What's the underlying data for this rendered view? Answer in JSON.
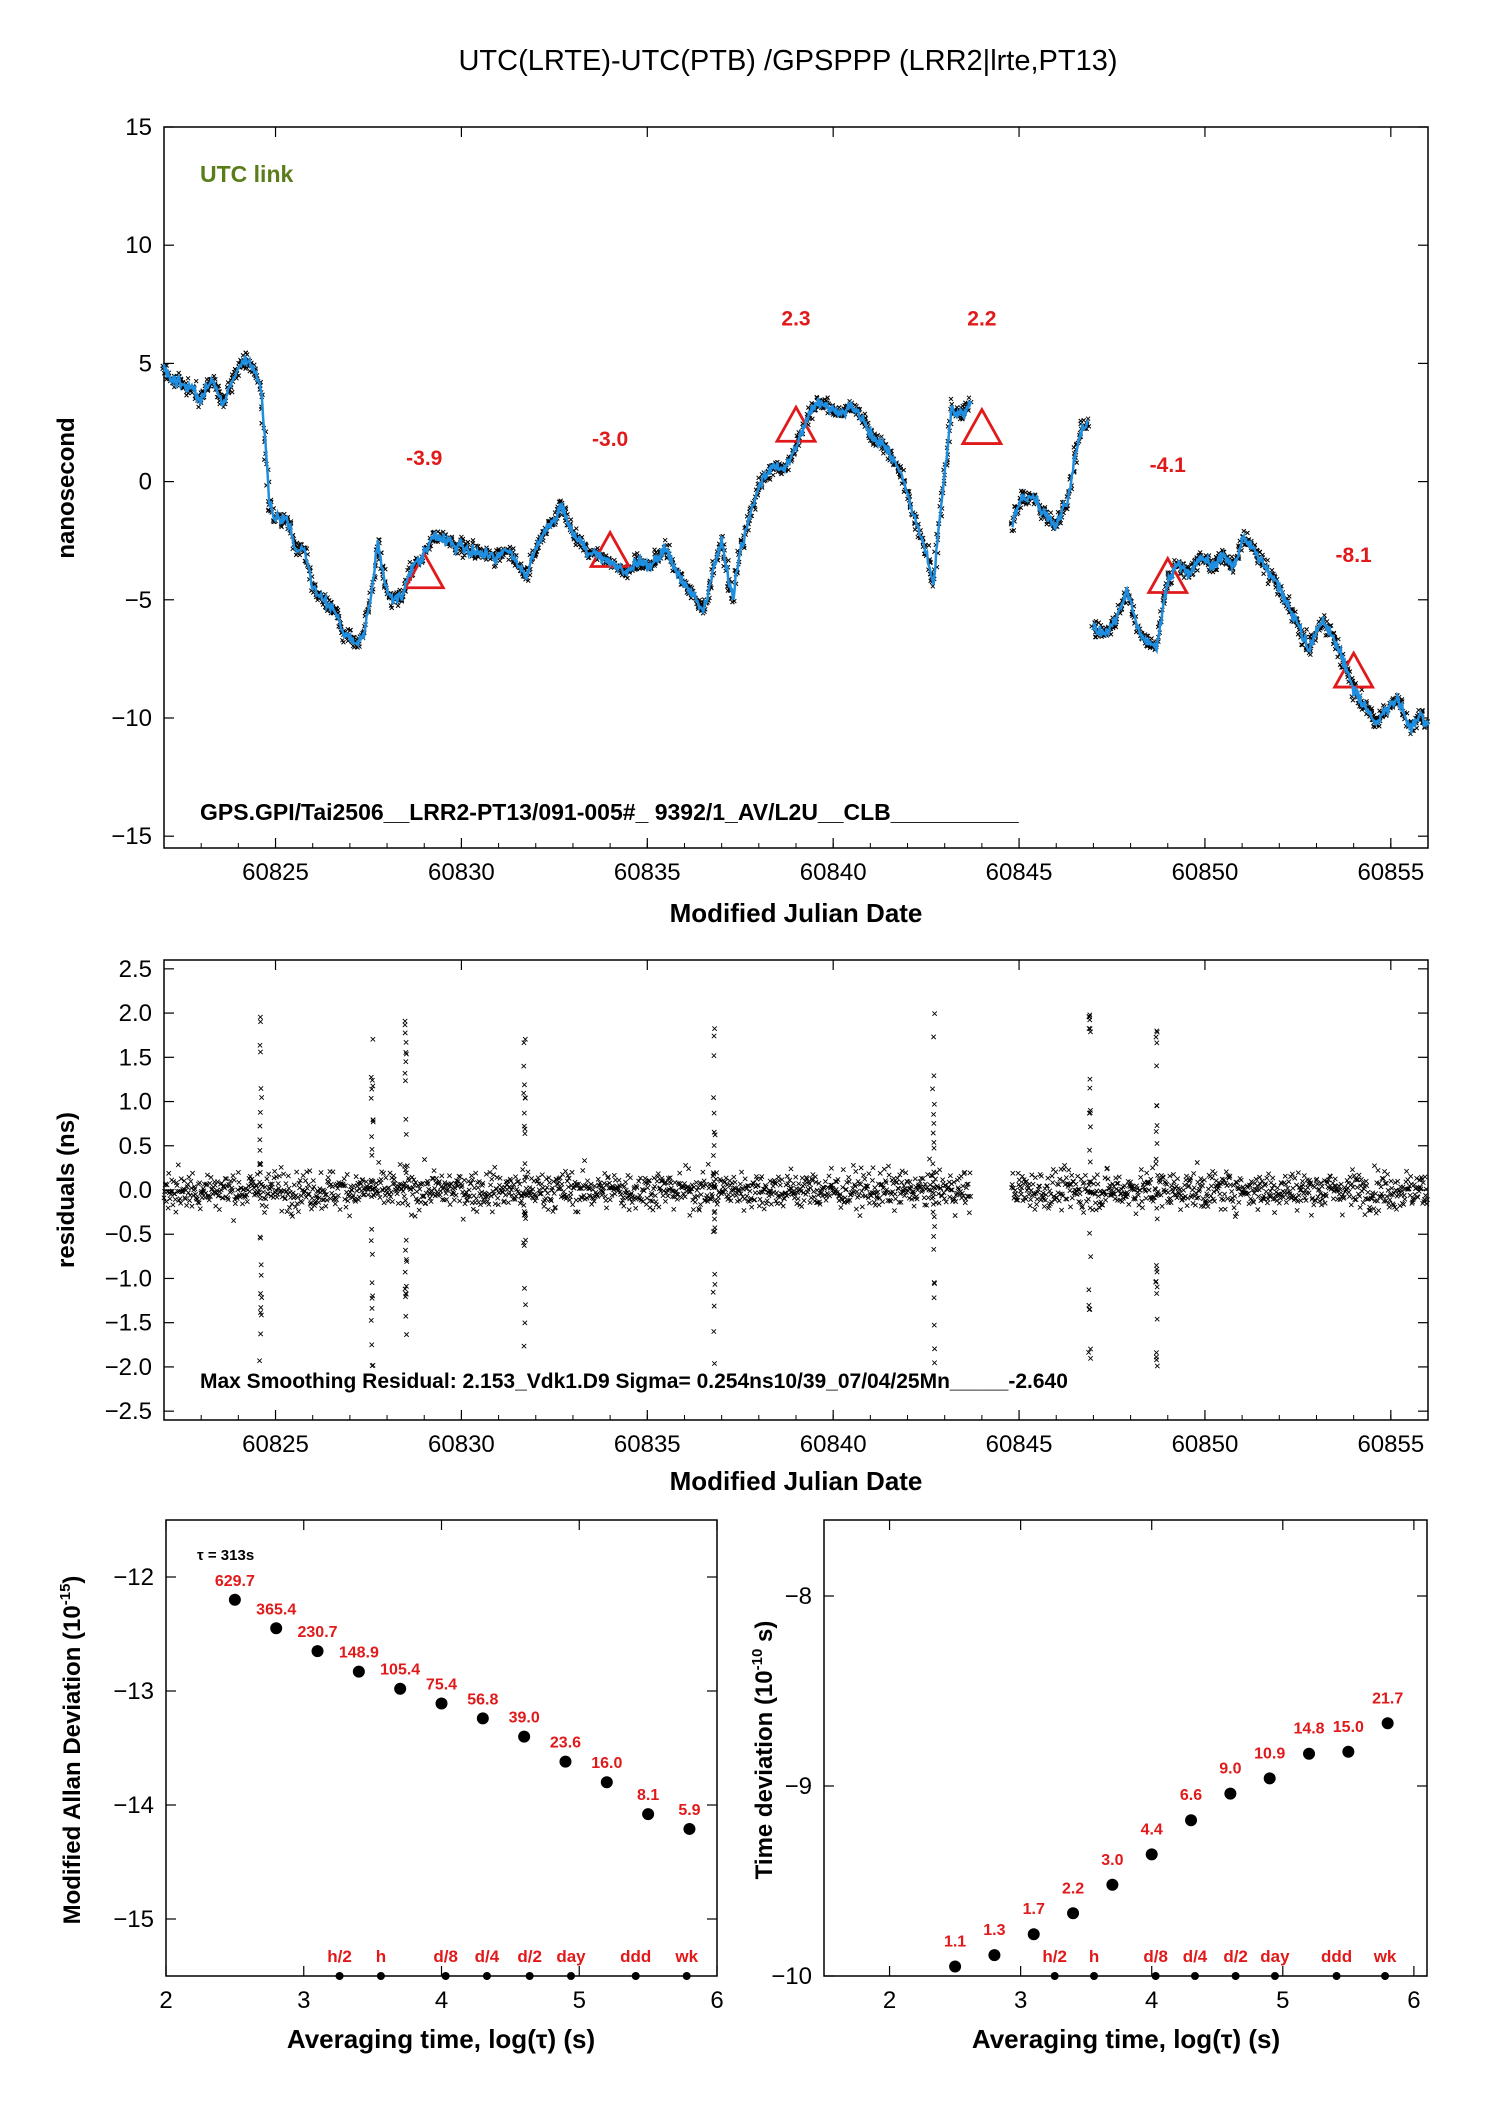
{
  "page_title": "UTC(LRTE)-UTC(PTB)  /GPSPPP  (LRR2|lrte,PT13)",
  "colors": {
    "series": "#1e8fe0",
    "points": "#000000",
    "label": "#e01a1a",
    "link": "#5a7d1a"
  },
  "chart_data": [
    {
      "type": "scatter",
      "xlabel": "Modified Julian Date",
      "ylabel": "nanosecond",
      "xlim": [
        60822,
        60856
      ],
      "ylim": [
        -15.5,
        15
      ],
      "x_ticks": [
        "60825",
        "60830",
        "60835",
        "60840",
        "60845",
        "60850",
        "60855"
      ],
      "y_ticks": [
        "15",
        "10",
        "5",
        "0",
        "−5",
        "−10",
        "−15"
      ],
      "annotation": "UTC link",
      "footer_label": "GPS.GPI/Tai2506__LRR2-PT13/091-005#_  9392/1_AV/L2U__CLB__________",
      "trace": [
        [
          60822.0,
          4.8
        ],
        [
          60822.3,
          4.2
        ],
        [
          60822.7,
          4.0
        ],
        [
          60823.0,
          3.5
        ],
        [
          60823.3,
          4.3
        ],
        [
          60823.6,
          3.2
        ],
        [
          60823.9,
          4.5
        ],
        [
          60824.2,
          5.2
        ],
        [
          60824.4,
          4.8
        ],
        [
          60824.6,
          4.1
        ],
        [
          60824.85,
          -1.0
        ],
        [
          60825.0,
          -1.7
        ],
        [
          60825.3,
          -1.5
        ],
        [
          60825.5,
          -2.8
        ],
        [
          60825.8,
          -3.0
        ],
        [
          60826.0,
          -4.5
        ],
        [
          60826.3,
          -5.0
        ],
        [
          60826.6,
          -5.5
        ],
        [
          60826.9,
          -6.5
        ],
        [
          60827.2,
          -6.9
        ],
        [
          60827.4,
          -6.2
        ],
        [
          60827.6,
          -4.5
        ],
        [
          60827.75,
          -2.5
        ],
        [
          60827.9,
          -4.0
        ],
        [
          60828.1,
          -5.0
        ],
        [
          60828.4,
          -4.8
        ],
        [
          60828.7,
          -3.5
        ],
        [
          60829.0,
          -3.0
        ],
        [
          60829.3,
          -2.3
        ],
        [
          60829.6,
          -2.5
        ],
        [
          60829.9,
          -2.7
        ],
        [
          60830.2,
          -2.9
        ],
        [
          60830.6,
          -3.0
        ],
        [
          60830.9,
          -3.2
        ],
        [
          60831.2,
          -2.8
        ],
        [
          60831.5,
          -3.5
        ],
        [
          60831.7,
          -4.0
        ],
        [
          60832.0,
          -2.8
        ],
        [
          60832.4,
          -1.8
        ],
        [
          60832.7,
          -1.0
        ],
        [
          60833.0,
          -2.2
        ],
        [
          60833.4,
          -3.0
        ],
        [
          60833.8,
          -3.2
        ],
        [
          60834.1,
          -3.5
        ],
        [
          60834.4,
          -3.8
        ],
        [
          60834.8,
          -3.3
        ],
        [
          60835.1,
          -3.6
        ],
        [
          60835.5,
          -2.8
        ],
        [
          60835.8,
          -3.9
        ],
        [
          60836.0,
          -4.3
        ],
        [
          60836.3,
          -4.9
        ],
        [
          60836.5,
          -5.6
        ],
        [
          60836.8,
          -3.5
        ],
        [
          60837.0,
          -2.6
        ],
        [
          60837.3,
          -5.0
        ],
        [
          60837.5,
          -3.0
        ],
        [
          60837.8,
          -1.2
        ],
        [
          60838.1,
          0.2
        ],
        [
          60838.4,
          0.7
        ],
        [
          60838.7,
          0.5
        ],
        [
          60839.0,
          1.5
        ],
        [
          60839.3,
          2.7
        ],
        [
          60839.6,
          3.4
        ],
        [
          60839.9,
          3.1
        ],
        [
          60840.2,
          2.9
        ],
        [
          60840.5,
          3.2
        ],
        [
          60840.8,
          2.6
        ],
        [
          60841.1,
          1.8
        ],
        [
          60841.4,
          1.5
        ],
        [
          60841.7,
          0.8
        ],
        [
          60841.9,
          0.0
        ],
        [
          60842.2,
          -1.5
        ],
        [
          60842.5,
          -3.0
        ],
        [
          60842.7,
          -4.3
        ],
        [
          60842.9,
          -1.0
        ],
        [
          60843.2,
          3.2
        ],
        [
          60843.5,
          2.8
        ],
        [
          60843.7,
          3.4
        ],
        [
          60844.8,
          -1.8
        ],
        [
          60845.1,
          -0.6
        ],
        [
          60845.4,
          -0.8
        ],
        [
          60845.7,
          -1.4
        ],
        [
          60846.0,
          -1.9
        ],
        [
          60846.3,
          -0.8
        ],
        [
          60846.6,
          1.8
        ],
        [
          60846.85,
          2.6
        ],
        [
          60847.0,
          -6.2
        ],
        [
          60847.3,
          -6.5
        ],
        [
          60847.6,
          -5.8
        ],
        [
          60847.9,
          -4.6
        ],
        [
          60848.2,
          -6.3
        ],
        [
          60848.5,
          -6.9
        ],
        [
          60848.7,
          -7.0
        ],
        [
          60849.0,
          -4.2
        ],
        [
          60849.3,
          -3.5
        ],
        [
          60849.6,
          -3.9
        ],
        [
          60849.9,
          -3.2
        ],
        [
          60850.2,
          -3.6
        ],
        [
          60850.5,
          -3.1
        ],
        [
          60850.8,
          -3.6
        ],
        [
          60851.0,
          -2.5
        ],
        [
          60851.3,
          -2.8
        ],
        [
          60851.6,
          -3.6
        ],
        [
          60851.9,
          -4.2
        ],
        [
          60852.2,
          -5.2
        ],
        [
          60852.5,
          -6.0
        ],
        [
          60852.8,
          -7.2
        ],
        [
          60853.1,
          -5.9
        ],
        [
          60853.4,
          -6.4
        ],
        [
          60853.7,
          -7.5
        ],
        [
          60854.0,
          -8.8
        ],
        [
          60854.3,
          -9.5
        ],
        [
          60854.6,
          -10.2
        ],
        [
          60854.9,
          -9.6
        ],
        [
          60855.2,
          -9.1
        ],
        [
          60855.5,
          -10.5
        ],
        [
          60855.8,
          -10.0
        ],
        [
          60856.0,
          -10.3
        ]
      ],
      "gaps_after_x": [
        60843.7,
        60846.85
      ],
      "markers": [
        {
          "x": 60829.0,
          "y": -3.9,
          "label": "-3.9",
          "label_y": 0.7
        },
        {
          "x": 60834.0,
          "y": -3.0,
          "label": "-3.0",
          "label_y": 1.5
        },
        {
          "x": 60839.0,
          "y": 2.3,
          "label": "2.3",
          "label_y": 6.6
        },
        {
          "x": 60844.0,
          "y": 2.2,
          "label": "2.2",
          "label_y": 6.6
        },
        {
          "x": 60849.0,
          "y": -4.1,
          "label": "-4.1",
          "label_y": 0.4
        },
        {
          "x": 60854.0,
          "y": -8.1,
          "label": "-8.1",
          "label_y": -3.4
        }
      ]
    },
    {
      "type": "scatter",
      "xlabel": "Modified Julian Date",
      "ylabel": "residuals (ns)",
      "xlim": [
        60822,
        60856
      ],
      "ylim": [
        -2.6,
        2.6
      ],
      "x_ticks": [
        "60825",
        "60830",
        "60835",
        "60840",
        "60845",
        "60850",
        "60855"
      ],
      "y_ticks": [
        "2.5",
        "2.0",
        "1.5",
        "1.0",
        "0.5",
        "0.0",
        "−0.5",
        "−1.0",
        "−1.5",
        "−2.0",
        "−2.5"
      ],
      "footer_label": "Max Smoothing Residual: 2.153_Vdk1.D9  Sigma= 0.254ns10/39_07/04/25Mn_____-2.640",
      "data_gap": [
        60843.7,
        60844.8
      ],
      "spike_epochs": [
        60824.6,
        60827.6,
        60828.5,
        60831.7,
        60836.8,
        60842.7,
        60846.9,
        60848.7
      ],
      "sigma_ns": 0.254
    },
    {
      "type": "scatter",
      "xlabel": "Averaging time, log(τ) (s)",
      "ylabel": "Modified Allan Deviation (10^-15)",
      "xlim": [
        2,
        6
      ],
      "ylim": [
        -15.5,
        -11.5
      ],
      "x_ticks": [
        "2",
        "3",
        "4",
        "5",
        "6"
      ],
      "y_ticks": [
        "−12",
        "−13",
        "−14",
        "−15"
      ],
      "note": "τ = 313s",
      "points": [
        {
          "x": 2.5,
          "y": -12.2,
          "label": "629.7"
        },
        {
          "x": 2.8,
          "y": -12.45,
          "label": "365.4"
        },
        {
          "x": 3.1,
          "y": -12.65,
          "label": "230.7"
        },
        {
          "x": 3.4,
          "y": -12.83,
          "label": "148.9"
        },
        {
          "x": 3.7,
          "y": -12.98,
          "label": "105.4"
        },
        {
          "x": 4.0,
          "y": -13.11,
          "label": "75.4"
        },
        {
          "x": 4.3,
          "y": -13.24,
          "label": "56.8"
        },
        {
          "x": 4.6,
          "y": -13.4,
          "label": "39.0"
        },
        {
          "x": 4.9,
          "y": -13.62,
          "label": "23.6"
        },
        {
          "x": 5.2,
          "y": -13.8,
          "label": "16.0"
        },
        {
          "x": 5.5,
          "y": -14.08,
          "label": "8.1"
        },
        {
          "x": 5.8,
          "y": -14.21,
          "label": "5.9"
        }
      ],
      "reference_marks": [
        {
          "x": 3.26,
          "label": "h/2"
        },
        {
          "x": 3.56,
          "label": "h"
        },
        {
          "x": 4.03,
          "label": "d/8"
        },
        {
          "x": 4.33,
          "label": "d/4"
        },
        {
          "x": 4.64,
          "label": "d/2"
        },
        {
          "x": 4.94,
          "label": "day"
        },
        {
          "x": 5.41,
          "label": "ddd"
        },
        {
          "x": 5.78,
          "label": "wk"
        }
      ]
    },
    {
      "type": "scatter",
      "xlabel": "Averaging time, log(τ) (s)",
      "ylabel": "Time deviation (10^-10 s)",
      "xlim": [
        1.5,
        6.1
      ],
      "ylim": [
        -10,
        -7.6
      ],
      "x_ticks": [
        "2",
        "3",
        "4",
        "5",
        "6"
      ],
      "y_ticks": [
        "−8",
        "−9",
        "−10"
      ],
      "points": [
        {
          "x": 2.5,
          "y": -9.95,
          "label": "1.1"
        },
        {
          "x": 2.8,
          "y": -9.89,
          "label": "1.3"
        },
        {
          "x": 3.1,
          "y": -9.78,
          "label": "1.7"
        },
        {
          "x": 3.4,
          "y": -9.67,
          "label": "2.2"
        },
        {
          "x": 3.7,
          "y": -9.52,
          "label": "3.0"
        },
        {
          "x": 4.0,
          "y": -9.36,
          "label": "4.4"
        },
        {
          "x": 4.3,
          "y": -9.18,
          "label": "6.6"
        },
        {
          "x": 4.6,
          "y": -9.04,
          "label": "9.0"
        },
        {
          "x": 4.9,
          "y": -8.96,
          "label": "10.9"
        },
        {
          "x": 5.2,
          "y": -8.83,
          "label": "14.8"
        },
        {
          "x": 5.5,
          "y": -8.82,
          "label": "15.0"
        },
        {
          "x": 5.8,
          "y": -8.67,
          "label": "21.7"
        }
      ],
      "reference_marks": [
        {
          "x": 3.26,
          "label": "h/2"
        },
        {
          "x": 3.56,
          "label": "h"
        },
        {
          "x": 4.03,
          "label": "d/8"
        },
        {
          "x": 4.33,
          "label": "d/4"
        },
        {
          "x": 4.64,
          "label": "d/2"
        },
        {
          "x": 4.94,
          "label": "day"
        },
        {
          "x": 5.41,
          "label": "ddd"
        },
        {
          "x": 5.78,
          "label": "wk"
        }
      ]
    }
  ]
}
